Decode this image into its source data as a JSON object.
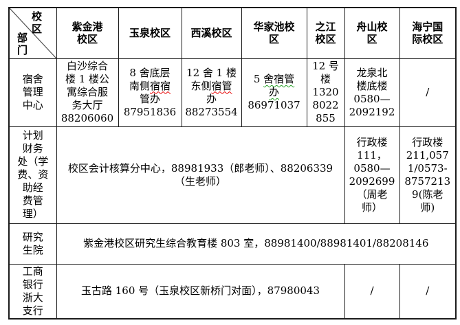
{
  "page": {
    "background_color": "#ffffff",
    "text_color": "#000000",
    "border_color": "#1a1a1a",
    "spellcheck_red": "#e60000",
    "grammar_green": "#27a227"
  },
  "table": {
    "corner": {
      "top_label": "校区",
      "bottom_label": "部门"
    },
    "header_columns": [
      "紫金港\n校区",
      "玉泉校区",
      "西溪校区",
      "华家池校\n区",
      "之江\n校区",
      "舟山校\n区",
      "海宁国\n际校区"
    ],
    "rows": [
      {
        "label": "宿舍\n管理\n中心",
        "cells": [
          {
            "text": "白沙综合\n楼 1 楼公\n寓综合服\n务大厅\n88206060"
          },
          {
            "segments": [
              {
                "t": "8 舍底层\n南侧"
              },
              {
                "t": "宿宿",
                "u": "red"
              },
              {
                "t": "\n管办\n87951836"
              }
            ]
          },
          {
            "segments": [
              {
                "t": "12 舍 1 楼\n东侧"
              },
              {
                "t": "宿管",
                "u": "red"
              },
              {
                "t": "\n办\n88273554"
              }
            ]
          },
          {
            "segments": [
              {
                "t": "5 "
              },
              {
                "t": "舍宿管\n办",
                "u": "green"
              },
              {
                "t": "\n86971037"
              }
            ]
          },
          {
            "text": "12 号\n楼\n1320\n8022\n855"
          },
          {
            "text": "龙泉北\n楼底楼\n0580—\n2092192"
          },
          {
            "text": "/"
          }
        ]
      },
      {
        "label": "计划\n财务\n处（学\n费、资\n助经\n费管\n理）",
        "merged": {
          "text": "校区会计核算分中心，88981933（郎老师）、88206339\n（生老师）",
          "span": 5
        },
        "cells": [
          {
            "text": "行政楼\n111，\n0580—\n2092699\n（周老\n师）"
          },
          {
            "text": "行政楼\n211,057\n1/0573-\n8757213\n9(陈老\n师)"
          }
        ]
      },
      {
        "label": "研究\n生院",
        "merged": {
          "text": "紫金港校区研究生综合教育楼 803 室，88981400/88981401/88208146",
          "span": 7
        }
      },
      {
        "label": "工商\n银行\n浙大\n支行",
        "merged": {
          "text": "玉古路 160 号（玉泉校区新桥门对面），87980043",
          "span": 5
        },
        "cells": [
          {
            "text": "/"
          },
          {
            "text": "/"
          }
        ]
      }
    ]
  }
}
